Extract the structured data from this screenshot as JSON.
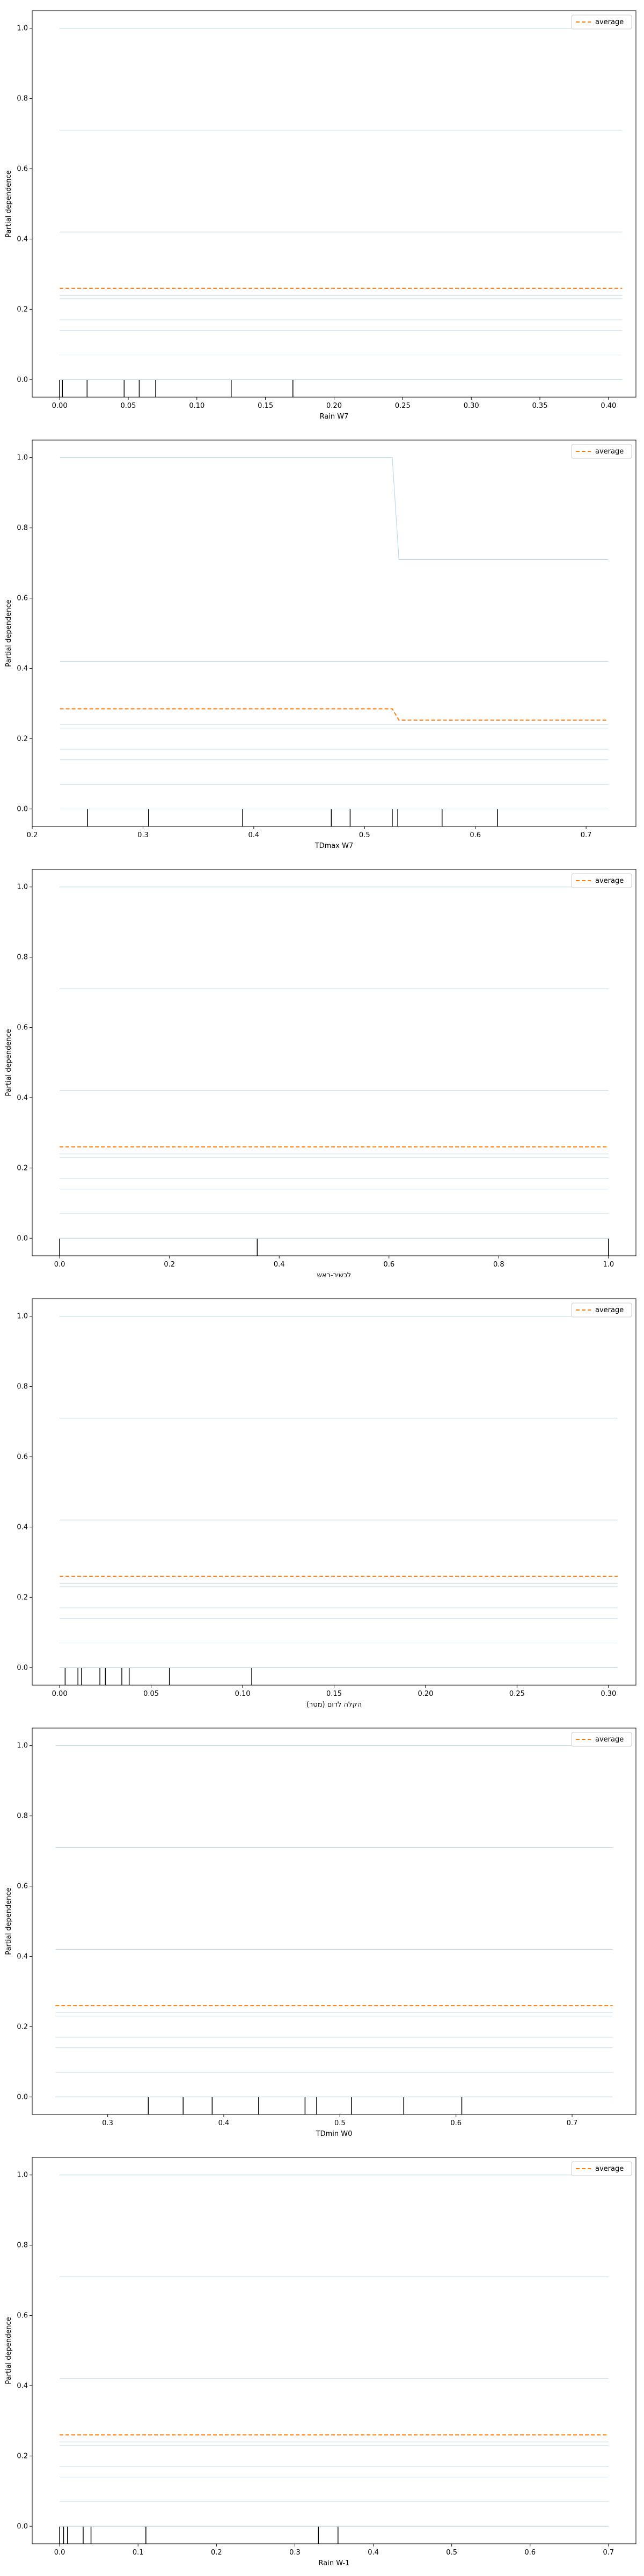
{
  "colors": {
    "ice": "#9ecae1",
    "average": "#ff7f0e",
    "rug": "#000000"
  },
  "legend_label": "average",
  "chart_data": [
    {
      "type": "line",
      "xlabel": "Rain W7",
      "ylabel": "Partial dependence",
      "xlim": [
        -0.02,
        0.42
      ],
      "ylim": [
        -0.05,
        1.05
      ],
      "xticks": [
        0.0,
        0.05,
        0.1,
        0.15,
        0.2,
        0.25,
        0.3,
        0.35,
        0.4
      ],
      "xtick_labels": [
        "0.00",
        "0.05",
        "0.10",
        "0.15",
        "0.20",
        "0.25",
        "0.30",
        "0.35",
        "0.40"
      ],
      "yticks": [
        0.0,
        0.2,
        0.4,
        0.6,
        0.8,
        1.0
      ],
      "ytick_labels": [
        "0.0",
        "0.2",
        "0.4",
        "0.6",
        "0.8",
        "1.0"
      ],
      "legend": "top-right",
      "grid": false,
      "x": [
        0.0,
        0.41
      ],
      "series": [
        {
          "values": [
            1.0,
            1.0
          ]
        },
        {
          "values": [
            0.71,
            0.71
          ]
        },
        {
          "values": [
            0.42,
            0.42
          ]
        },
        {
          "values": [
            0.24,
            0.24
          ]
        },
        {
          "values": [
            0.23,
            0.23
          ]
        },
        {
          "values": [
            0.17,
            0.17
          ]
        },
        {
          "values": [
            0.14,
            0.14
          ]
        },
        {
          "values": [
            0.07,
            0.07
          ]
        },
        {
          "values": [
            0.0,
            0.0
          ]
        },
        {
          "name": "average",
          "values": [
            0.26,
            0.26
          ]
        }
      ],
      "rug": [
        0.0,
        0.002,
        0.02,
        0.047,
        0.058,
        0.07,
        0.125,
        0.17
      ]
    },
    {
      "type": "line",
      "xlabel": "TDmax W7",
      "ylabel": "Partial dependence",
      "xlim": [
        0.2,
        0.745
      ],
      "ylim": [
        -0.05,
        1.05
      ],
      "xticks": [
        0.2,
        0.3,
        0.4,
        0.5,
        0.6,
        0.7
      ],
      "xtick_labels": [
        "0.2",
        "0.3",
        "0.4",
        "0.5",
        "0.6",
        "0.7"
      ],
      "yticks": [
        0.0,
        0.2,
        0.4,
        0.6,
        0.8,
        1.0
      ],
      "ytick_labels": [
        "0.0",
        "0.2",
        "0.4",
        "0.6",
        "0.8",
        "1.0"
      ],
      "legend": "top-right",
      "grid": false,
      "x": [
        0.225,
        0.525,
        0.531,
        0.72
      ],
      "series": [
        {
          "values": [
            1.0,
            1.0,
            0.71,
            0.71
          ]
        },
        {
          "values": [
            0.42,
            0.42,
            0.42,
            0.42
          ]
        },
        {
          "values": [
            0.24,
            0.24,
            0.24,
            0.24
          ]
        },
        {
          "values": [
            0.23,
            0.23,
            0.23,
            0.23
          ]
        },
        {
          "values": [
            0.17,
            0.17,
            0.17,
            0.17
          ]
        },
        {
          "values": [
            0.14,
            0.14,
            0.14,
            0.14
          ]
        },
        {
          "values": [
            0.07,
            0.07,
            0.07,
            0.07
          ]
        },
        {
          "values": [
            0.0,
            0.0,
            0.0,
            0.0
          ]
        },
        {
          "name": "average",
          "values": [
            0.285,
            0.285,
            0.253,
            0.253
          ]
        }
      ],
      "rug": [
        0.25,
        0.305,
        0.39,
        0.47,
        0.487,
        0.525,
        0.53,
        0.57,
        0.62
      ]
    },
    {
      "type": "line",
      "xlabel": "לכשיר-ראש",
      "ylabel": "Partial dependence",
      "xlim": [
        -0.05,
        1.05
      ],
      "ylim": [
        -0.05,
        1.05
      ],
      "xticks": [
        0.0,
        0.2,
        0.4,
        0.6,
        0.8,
        1.0
      ],
      "xtick_labels": [
        "0.0",
        "0.2",
        "0.4",
        "0.6",
        "0.8",
        "1.0"
      ],
      "yticks": [
        0.0,
        0.2,
        0.4,
        0.6,
        0.8,
        1.0
      ],
      "ytick_labels": [
        "0.0",
        "0.2",
        "0.4",
        "0.6",
        "0.8",
        "1.0"
      ],
      "legend": "top-right",
      "grid": false,
      "x": [
        0.0,
        1.0
      ],
      "series": [
        {
          "values": [
            1.0,
            1.0
          ]
        },
        {
          "values": [
            0.71,
            0.71
          ]
        },
        {
          "values": [
            0.42,
            0.42
          ]
        },
        {
          "values": [
            0.24,
            0.24
          ]
        },
        {
          "values": [
            0.23,
            0.23
          ]
        },
        {
          "values": [
            0.17,
            0.17
          ]
        },
        {
          "values": [
            0.14,
            0.14
          ]
        },
        {
          "values": [
            0.07,
            0.07
          ]
        },
        {
          "values": [
            0.0,
            0.0
          ]
        },
        {
          "name": "average",
          "values": [
            0.26,
            0.26
          ]
        }
      ],
      "rug": [
        0.0,
        0.36,
        1.0
      ]
    },
    {
      "type": "line",
      "xlabel": "(מטר) הקלה לדום",
      "ylabel": "",
      "xlim": [
        -0.015,
        0.315
      ],
      "ylim": [
        -0.05,
        1.05
      ],
      "xticks": [
        0.0,
        0.05,
        0.1,
        0.15,
        0.2,
        0.25,
        0.3
      ],
      "xtick_labels": [
        "0.00",
        "0.05",
        "0.10",
        "0.15",
        "0.20",
        "0.25",
        "0.30"
      ],
      "yticks": [
        0.0,
        0.2,
        0.4,
        0.6,
        0.8,
        1.0
      ],
      "ytick_labels": [
        "0.0",
        "0.2",
        "0.4",
        "0.6",
        "0.8",
        "1.0"
      ],
      "legend": "top-right",
      "grid": false,
      "x": [
        0.0,
        0.305
      ],
      "series": [
        {
          "values": [
            1.0,
            1.0
          ]
        },
        {
          "values": [
            0.71,
            0.71
          ]
        },
        {
          "values": [
            0.42,
            0.42
          ]
        },
        {
          "values": [
            0.24,
            0.24
          ]
        },
        {
          "values": [
            0.23,
            0.23
          ]
        },
        {
          "values": [
            0.17,
            0.17
          ]
        },
        {
          "values": [
            0.14,
            0.14
          ]
        },
        {
          "values": [
            0.07,
            0.07
          ]
        },
        {
          "values": [
            0.0,
            0.0
          ]
        },
        {
          "name": "average",
          "values": [
            0.26,
            0.26
          ]
        }
      ],
      "rug": [
        0.003,
        0.01,
        0.012,
        0.022,
        0.025,
        0.034,
        0.038,
        0.06,
        0.105
      ]
    },
    {
      "type": "line",
      "xlabel": "TDmin W0",
      "ylabel": "Partial dependence",
      "xlim": [
        0.235,
        0.755
      ],
      "ylim": [
        -0.05,
        1.05
      ],
      "xticks": [
        0.3,
        0.4,
        0.5,
        0.6,
        0.7
      ],
      "xtick_labels": [
        "0.3",
        "0.4",
        "0.5",
        "0.6",
        "0.7"
      ],
      "yticks": [
        0.0,
        0.2,
        0.4,
        0.6,
        0.8,
        1.0
      ],
      "ytick_labels": [
        "0.0",
        "0.2",
        "0.4",
        "0.6",
        "0.8",
        "1.0"
      ],
      "legend": "top-right",
      "grid": false,
      "x": [
        0.255,
        0.735
      ],
      "series": [
        {
          "values": [
            1.0,
            1.0
          ]
        },
        {
          "values": [
            0.71,
            0.71
          ]
        },
        {
          "values": [
            0.42,
            0.42
          ]
        },
        {
          "values": [
            0.24,
            0.24
          ]
        },
        {
          "values": [
            0.23,
            0.23
          ]
        },
        {
          "values": [
            0.17,
            0.17
          ]
        },
        {
          "values": [
            0.14,
            0.14
          ]
        },
        {
          "values": [
            0.07,
            0.07
          ]
        },
        {
          "values": [
            0.0,
            0.0
          ]
        },
        {
          "name": "average",
          "values": [
            0.26,
            0.26
          ]
        }
      ],
      "rug": [
        0.335,
        0.365,
        0.39,
        0.43,
        0.47,
        0.48,
        0.51,
        0.555,
        0.605
      ]
    },
    {
      "type": "line",
      "xlabel": "Rain W-1",
      "ylabel": "Partial dependence",
      "xlim": [
        -0.035,
        0.735
      ],
      "ylim": [
        -0.05,
        1.05
      ],
      "xticks": [
        0.0,
        0.1,
        0.2,
        0.3,
        0.4,
        0.5,
        0.6,
        0.7
      ],
      "xtick_labels": [
        "0.0",
        "0.1",
        "0.2",
        "0.3",
        "0.4",
        "0.5",
        "0.6",
        "0.7"
      ],
      "yticks": [
        0.0,
        0.2,
        0.4,
        0.6,
        0.8,
        1.0
      ],
      "ytick_labels": [
        "0.0",
        "0.2",
        "0.4",
        "0.6",
        "0.8",
        "1.0"
      ],
      "legend": "top-right",
      "grid": false,
      "x": [
        0.0,
        0.7
      ],
      "series": [
        {
          "values": [
            1.0,
            1.0
          ]
        },
        {
          "values": [
            0.71,
            0.71
          ]
        },
        {
          "values": [
            0.42,
            0.42
          ]
        },
        {
          "values": [
            0.24,
            0.24
          ]
        },
        {
          "values": [
            0.23,
            0.23
          ]
        },
        {
          "values": [
            0.17,
            0.17
          ]
        },
        {
          "values": [
            0.14,
            0.14
          ]
        },
        {
          "values": [
            0.07,
            0.07
          ]
        },
        {
          "values": [
            0.0,
            0.0
          ]
        },
        {
          "name": "average",
          "values": [
            0.26,
            0.26
          ]
        }
      ],
      "rug": [
        0.0,
        0.005,
        0.01,
        0.03,
        0.04,
        0.11,
        0.33,
        0.355
      ]
    }
  ]
}
